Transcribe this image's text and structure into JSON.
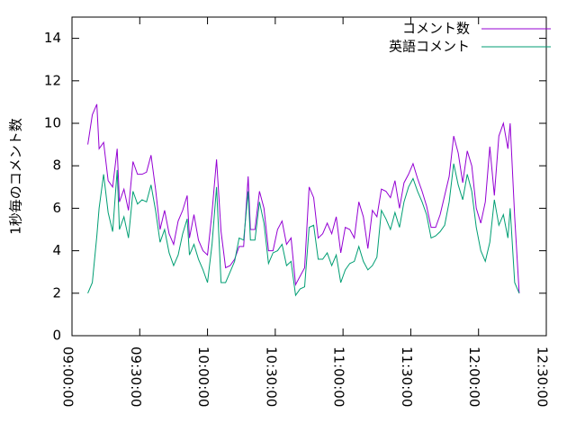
{
  "chart_data": {
    "type": "line",
    "ylabel": "1秒毎のコメント数",
    "xlim": [
      "09:00:00",
      "12:30:00"
    ],
    "xticks": [
      "09:00:00",
      "09:30:00",
      "10:00:00",
      "10:30:00",
      "11:00:00",
      "11:30:00",
      "12:00:00",
      "12:30:00"
    ],
    "ylim": [
      0,
      15
    ],
    "yticks": [
      0,
      2,
      4,
      6,
      8,
      10,
      12,
      14
    ],
    "legend": "top-right",
    "x": [
      "09:07:00",
      "09:09:00",
      "09:11:00",
      "09:12:00",
      "09:14:00",
      "09:16:00",
      "09:18:00",
      "09:20:00",
      "09:21:00",
      "09:23:00",
      "09:25:00",
      "09:27:00",
      "09:29:00",
      "09:31:00",
      "09:33:00",
      "09:35:00",
      "09:37:00",
      "09:39:00",
      "09:41:00",
      "09:43:00",
      "09:45:00",
      "09:47:00",
      "09:49:00",
      "09:51:00",
      "09:52:00",
      "09:54:00",
      "09:56:00",
      "09:58:00",
      "10:00:00",
      "10:02:00",
      "10:04:00",
      "10:06:00",
      "10:08:00",
      "10:10:00",
      "10:12:00",
      "10:14:00",
      "10:16:00",
      "10:18:00",
      "10:19:00",
      "10:21:00",
      "10:23:00",
      "10:25:00",
      "10:27:00",
      "10:29:00",
      "10:31:00",
      "10:33:00",
      "10:35:00",
      "10:37:00",
      "10:39:00",
      "10:41:00",
      "10:43:00",
      "10:45:00",
      "10:47:00",
      "10:49:00",
      "10:51:00",
      "10:53:00",
      "10:55:00",
      "10:57:00",
      "10:59:00",
      "11:01:00",
      "11:03:00",
      "11:05:00",
      "11:07:00",
      "11:09:00",
      "11:11:00",
      "11:13:00",
      "11:15:00",
      "11:17:00",
      "11:19:00",
      "11:21:00",
      "11:23:00",
      "11:25:00",
      "11:27:00",
      "11:29:00",
      "11:31:00",
      "11:33:00",
      "11:35:00",
      "11:37:00",
      "11:39:00",
      "11:41:00",
      "11:43:00",
      "11:45:00",
      "11:47:00",
      "11:49:00",
      "11:51:00",
      "11:53:00",
      "11:55:00",
      "11:57:00",
      "11:59:00",
      "12:01:00",
      "12:03:00",
      "12:05:00",
      "12:07:00",
      "12:09:00",
      "12:11:00",
      "12:13:00",
      "12:14:00",
      "12:16:00",
      "12:18:00"
    ],
    "series": [
      {
        "name": "コメント数",
        "color": "#9400d3",
        "values": [
          9.0,
          10.4,
          10.9,
          8.8,
          9.1,
          7.3,
          7.0,
          8.8,
          6.3,
          6.9,
          5.9,
          8.2,
          7.6,
          7.6,
          7.7,
          8.5,
          6.9,
          5.0,
          5.9,
          4.8,
          4.3,
          5.4,
          5.9,
          6.6,
          4.6,
          5.7,
          4.5,
          4.0,
          3.8,
          5.8,
          8.3,
          4.9,
          3.2,
          3.3,
          3.6,
          4.2,
          4.2,
          7.5,
          5.0,
          5.0,
          6.8,
          6.0,
          4.0,
          4.0,
          5.0,
          5.4,
          4.3,
          4.6,
          2.4,
          2.8,
          3.2,
          7.0,
          6.5,
          4.6,
          4.8,
          5.3,
          4.8,
          5.6,
          3.9,
          5.1,
          5.0,
          4.6,
          6.3,
          5.6,
          4.1,
          5.9,
          5.6,
          6.9,
          6.8,
          6.5,
          7.3,
          6.0,
          7.2,
          7.6,
          8.1,
          7.4,
          6.8,
          6.1,
          5.1,
          5.1,
          5.7,
          6.6,
          7.5,
          9.4,
          8.6,
          7.2,
          8.7,
          8.0,
          6.0,
          5.3,
          6.3,
          8.9,
          6.6,
          9.4,
          10.0,
          8.8,
          10.0,
          5.6,
          2.0
        ]
      },
      {
        "name": "英語コメント",
        "color": "#009e73",
        "values": [
          2.0,
          2.5,
          4.7,
          6.0,
          7.6,
          5.8,
          4.9,
          7.8,
          5.0,
          5.6,
          4.6,
          6.8,
          6.2,
          6.4,
          6.3,
          7.1,
          5.9,
          4.4,
          5.0,
          3.9,
          3.3,
          3.8,
          4.8,
          5.5,
          3.8,
          4.3,
          3.6,
          3.1,
          2.5,
          4.3,
          7.0,
          2.5,
          2.5,
          3.0,
          3.5,
          4.6,
          4.5,
          6.8,
          4.5,
          4.5,
          6.3,
          5.3,
          3.4,
          3.9,
          4.0,
          4.3,
          3.3,
          3.5,
          1.9,
          2.2,
          2.3,
          5.1,
          5.2,
          3.6,
          3.6,
          3.9,
          3.3,
          3.8,
          2.5,
          3.1,
          3.4,
          3.5,
          4.2,
          3.5,
          3.1,
          3.3,
          3.7,
          5.9,
          5.5,
          5.0,
          5.8,
          5.1,
          6.3,
          7.0,
          7.4,
          6.8,
          6.3,
          5.7,
          4.6,
          4.7,
          4.9,
          5.2,
          6.3,
          8.1,
          7.1,
          6.4,
          7.6,
          6.8,
          5.1,
          4.0,
          3.5,
          4.4,
          6.4,
          5.2,
          5.7,
          4.6,
          6.0,
          2.5,
          2.0
        ]
      }
    ]
  }
}
